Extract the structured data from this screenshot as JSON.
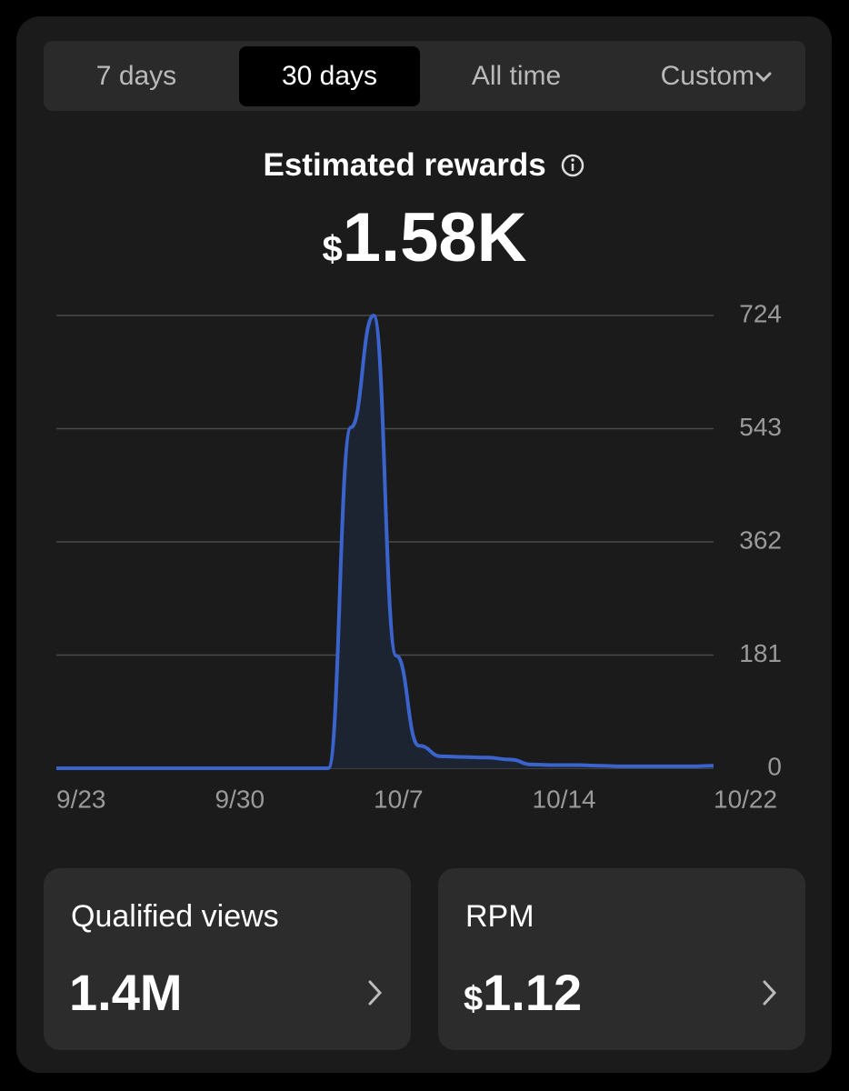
{
  "tabs": [
    "7 days",
    "30 days",
    "All time",
    "Custom"
  ],
  "chart_data": {
    "type": "line",
    "title": "Estimated rewards",
    "total": {
      "currency": "$",
      "amount": "1.58K"
    },
    "categories": [
      "9/23",
      null,
      null,
      null,
      null,
      null,
      null,
      "9/30",
      null,
      null,
      null,
      null,
      null,
      null,
      "10/7",
      null,
      null,
      null,
      null,
      null,
      null,
      "10/14",
      null,
      null,
      null,
      null,
      null,
      null,
      null,
      "10/22"
    ],
    "values": [
      0,
      0,
      0,
      0,
      0,
      0,
      0,
      0,
      0,
      0,
      0,
      0,
      0,
      545,
      724,
      180,
      36,
      19,
      18,
      17,
      14,
      6,
      5,
      5,
      4,
      3,
      3,
      3,
      3,
      4
    ],
    "color": "#3a64cc",
    "ylim": [
      0,
      724
    ],
    "yticks": [
      0,
      181,
      362,
      543,
      724
    ],
    "grid": true
  },
  "metrics": [
    {
      "label": "Qualified views",
      "value": "1.4M"
    },
    {
      "label": "RPM",
      "currency": "$",
      "value": "1.12"
    }
  ]
}
